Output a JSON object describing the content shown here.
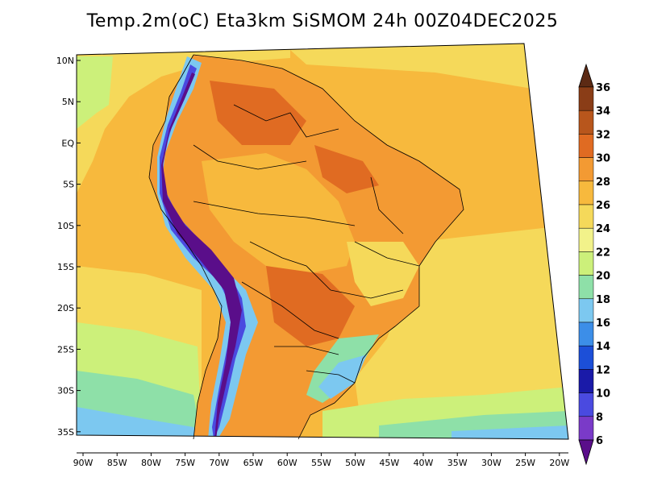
{
  "title": "Temp.2m(oC) Eta3km SiSMOM 24h 00Z04DEC2025",
  "map": {
    "region": "South America",
    "variable": "2 m temperature",
    "units": "oC",
    "lat_labels": [
      "10N",
      "5N",
      "EQ",
      "5S",
      "10S",
      "15S",
      "20S",
      "25S",
      "30S",
      "35S"
    ],
    "lon_labels": [
      "90W",
      "85W",
      "80W",
      "75W",
      "70W",
      "65W",
      "60W",
      "55W",
      "50W",
      "45W",
      "40W",
      "35W",
      "30W",
      "25W",
      "20W"
    ]
  },
  "colorbar": {
    "labels": [
      "36",
      "34",
      "32",
      "30",
      "28",
      "26",
      "24",
      "22",
      "20",
      "18",
      "16",
      "14",
      "12",
      "10",
      "8",
      "6"
    ],
    "colors": [
      "#5c2a14",
      "#8a3d17",
      "#b8561c",
      "#e06b22",
      "#f39a33",
      "#f7b93d",
      "#f5d95a",
      "#f2f28a",
      "#ccf07a",
      "#8ee0a8",
      "#7cc8f0",
      "#3c8ee8",
      "#1c4fd8",
      "#1a1aa8",
      "#4a4ae0",
      "#7a3ac8",
      "#5a0e8a"
    ]
  },
  "colors": {
    "ocean_warm": "#f7b93d",
    "ocean_mid": "#f5d95a",
    "ocean_cool": "#ccf07a",
    "land_hot": "#f39a33",
    "andes_cold": "#5a0e8a"
  }
}
